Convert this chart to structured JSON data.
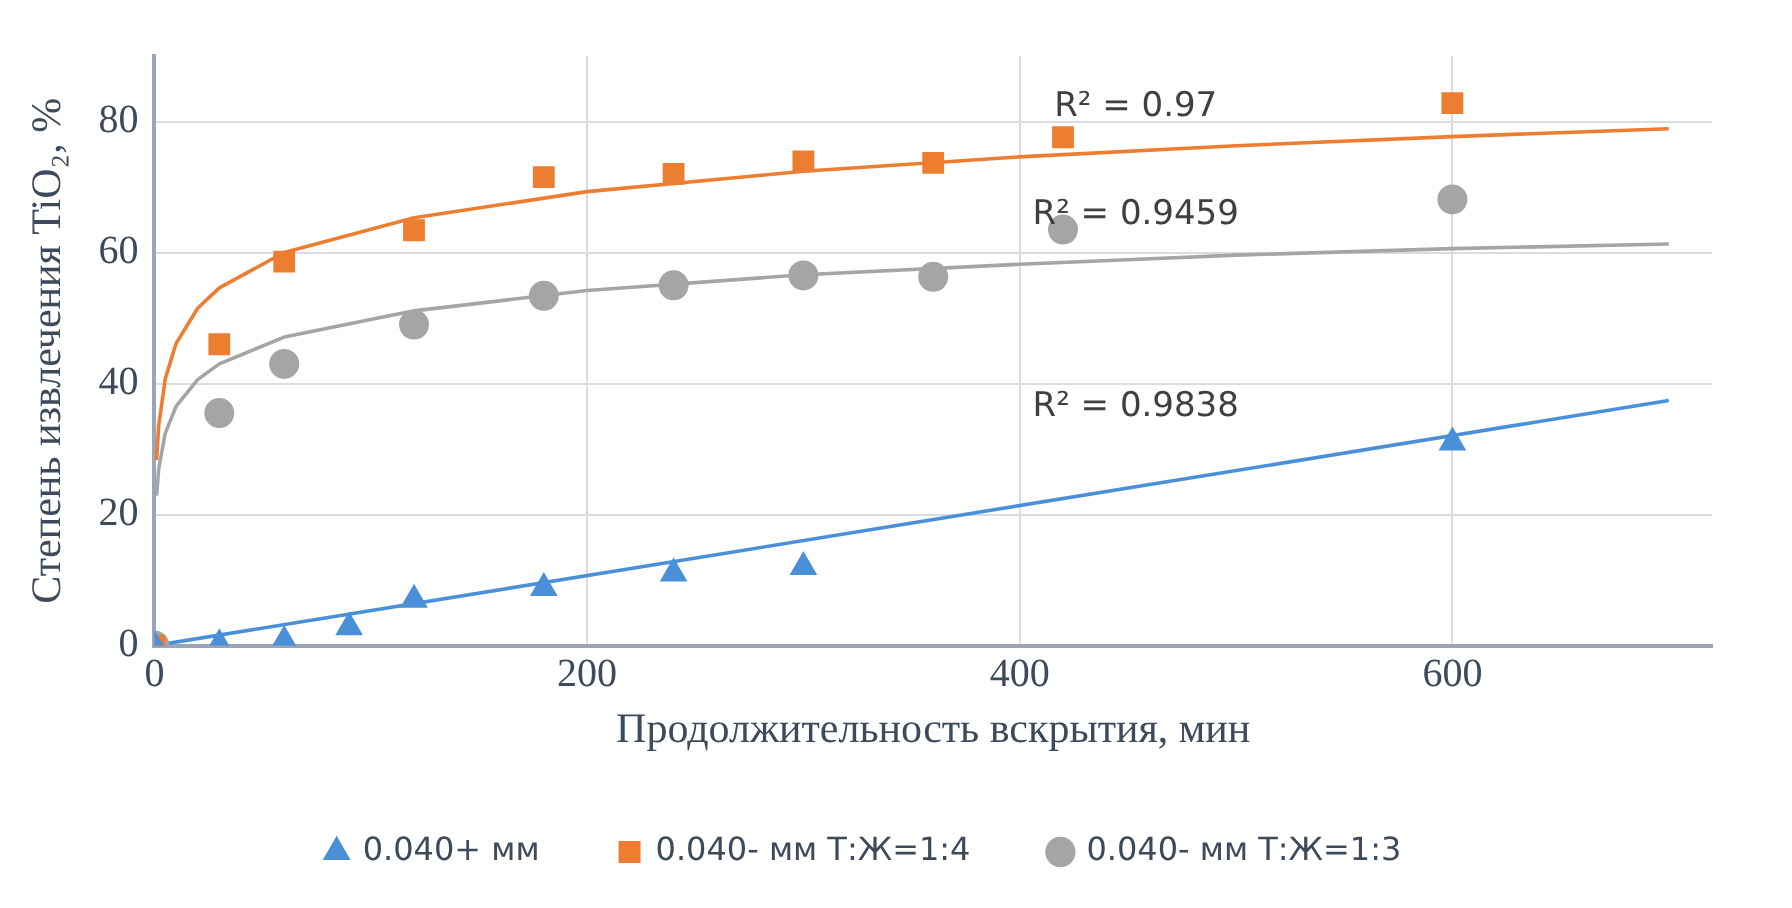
{
  "chart_data": {
    "type": "scatter",
    "ylabel": "Степень извлечения TiO₂, %",
    "xlabel": "Продолжительность вскрытия, мин",
    "xlim": [
      0,
      720
    ],
    "xticks": [
      0,
      200,
      400,
      600
    ],
    "ylim": [
      0,
      90
    ],
    "yticks": [
      0,
      20,
      40,
      60,
      80
    ],
    "grid": true,
    "legend": "bottom",
    "series": [
      {
        "name": "0.040+ мм",
        "color": "#4a90d9",
        "marker": "triangle",
        "x": [
          0,
          30,
          60,
          90,
          120,
          180,
          240,
          300,
          600
        ],
        "values": [
          0,
          0.2,
          0.7,
          2.8,
          7,
          8.8,
          11,
          12,
          31
        ]
      },
      {
        "name": "0.040- мм Т:Ж=1:4",
        "color": "#ed7d31",
        "marker": "square",
        "x": [
          0,
          30,
          60,
          120,
          180,
          240,
          300,
          360,
          420,
          600
        ],
        "values": [
          0,
          46,
          58.6,
          63.4,
          71.5,
          72,
          73.9,
          73.7,
          77.6,
          82.8
        ]
      },
      {
        "name": "0.040- мм Т:Ж=1:3",
        "color": "#a5a5a5",
        "marker": "circle",
        "x": [
          0,
          30,
          60,
          120,
          180,
          240,
          300,
          360,
          420,
          600
        ],
        "values": [
          0,
          35.5,
          43,
          49,
          53.4,
          55,
          56.5,
          56.3,
          63.5,
          68.1
        ]
      },
      {
        "type": "line",
        "color": "#ed7d31",
        "marker": "none",
        "x": [
          1,
          2,
          5,
          10,
          20,
          30,
          60,
          120,
          200,
          300,
          400,
          500,
          600,
          700
        ],
        "values": [
          28.3,
          33.6,
          40.7,
          46.1,
          51.5,
          54.6,
          60,
          65.3,
          69.3,
          72.4,
          74.6,
          76.3,
          77.7,
          78.9
        ]
      },
      {
        "type": "line",
        "color": "#a5a5a5",
        "marker": "none",
        "x": [
          1,
          2,
          5,
          10,
          20,
          30,
          60,
          120,
          200,
          300,
          400,
          500,
          600,
          700
        ],
        "values": [
          22.9,
          27,
          32.4,
          36.5,
          40.6,
          43,
          47.1,
          51.1,
          54.2,
          56.6,
          58.2,
          59.6,
          60.6,
          61.3
        ]
      },
      {
        "type": "line",
        "color": "#4a90d9",
        "marker": "none",
        "x": [
          0,
          700
        ],
        "values": [
          0,
          37.4
        ]
      }
    ],
    "annotations": [
      "R² = 0.97",
      "R² = 0.9459",
      "R² = 0.9838"
    ]
  }
}
